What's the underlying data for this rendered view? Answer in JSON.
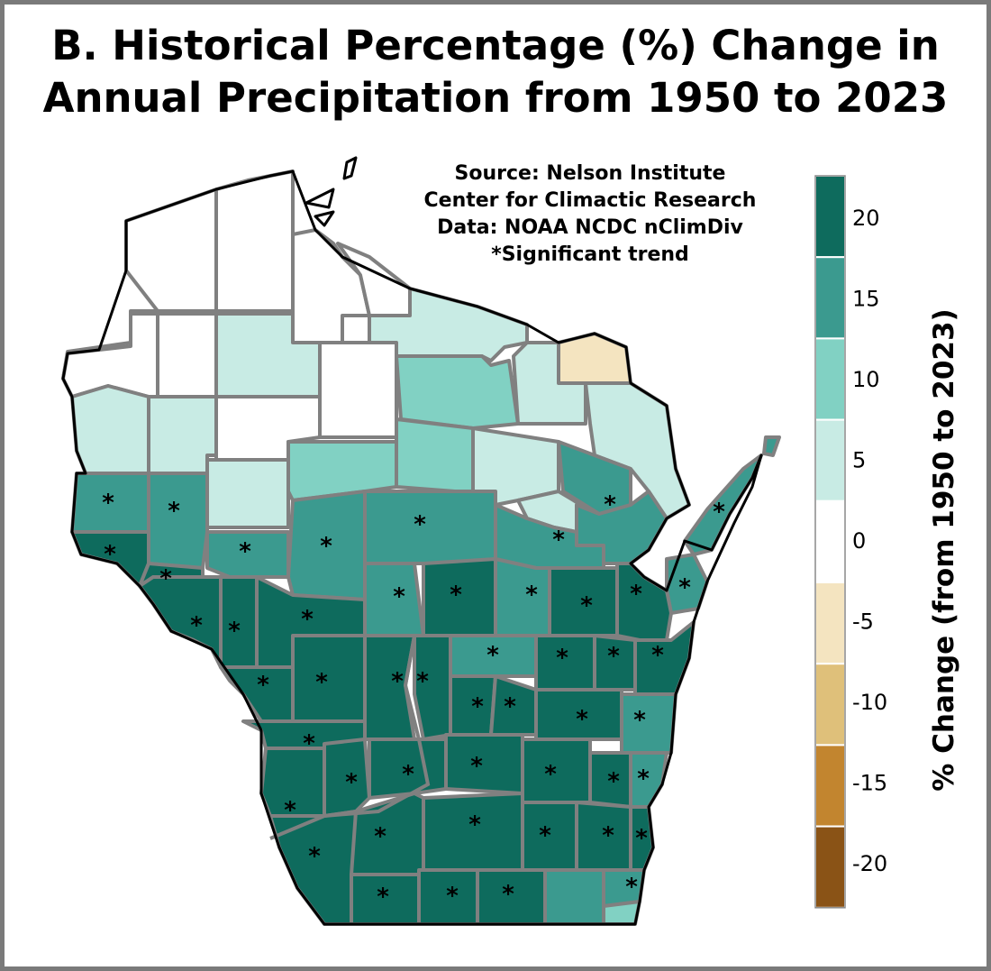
{
  "title": {
    "line1": "B. Historical Percentage (%) Change in",
    "line2": "Annual Precipitation from 1950 to 2023"
  },
  "source": {
    "line1": "Source:  Nelson Institute",
    "line2": "Center for Climactic Research",
    "line3": "Data: NOAA NCDC nClimDiv",
    "line4": "*Significant trend"
  },
  "legend": {
    "title": "% Change (from 1950 to 2023)",
    "ticks": [
      "20",
      "15",
      "10",
      "5",
      "0",
      "-5",
      "-10",
      "-15",
      "-20"
    ],
    "bins": [
      {
        "color": "#0e6b5d"
      },
      {
        "color": "#3b9a8f"
      },
      {
        "color": "#81d1c3"
      },
      {
        "color": "#c8ebe4"
      },
      {
        "color": "#ffffff"
      },
      {
        "color": "#f4e4c0"
      },
      {
        "color": "#dfc07a"
      },
      {
        "color": "#c2852f"
      },
      {
        "color": "#8a5316"
      }
    ]
  },
  "significant_marker": "*"
}
